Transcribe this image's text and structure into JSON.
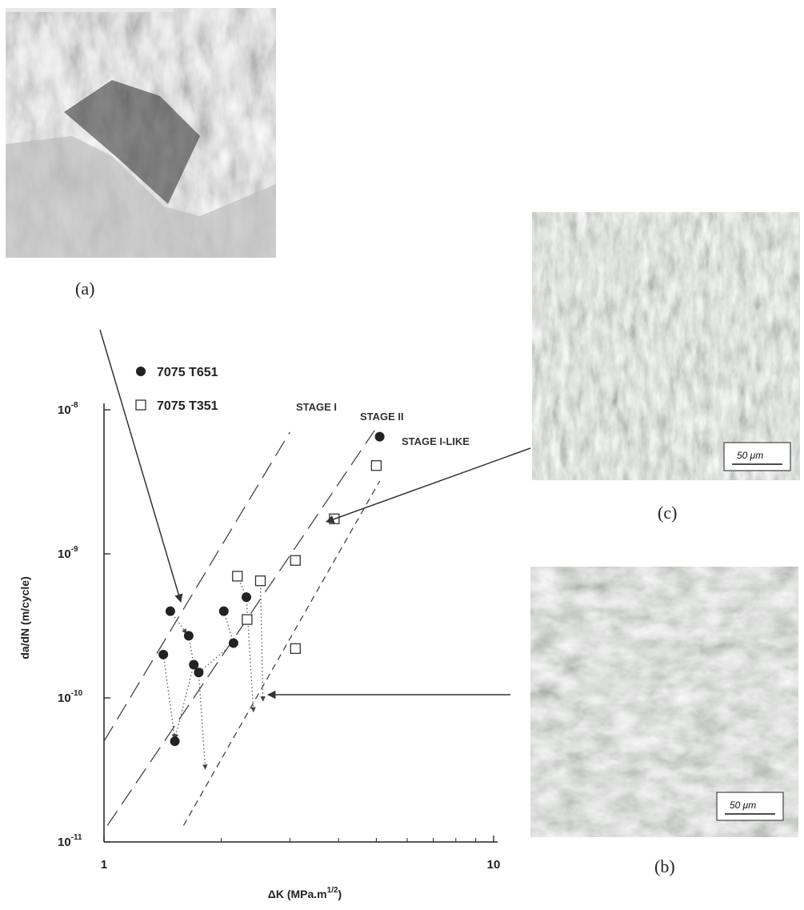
{
  "panels": {
    "a": {
      "caption": "(a)"
    },
    "c": {
      "caption": "(c)",
      "scale_bar": "50 μm"
    },
    "b": {
      "caption": "(b)",
      "scale_bar": "50 μm"
    }
  },
  "legend": {
    "items": [
      {
        "label": "7075 T651",
        "marker": "filled-circle"
      },
      {
        "label": "7075 T351",
        "marker": "open-square"
      }
    ]
  },
  "chart_data": {
    "type": "scatter",
    "xscale": "log",
    "yscale": "log",
    "xlim": [
      1,
      10
    ],
    "ylim": [
      1e-11,
      1e-08
    ],
    "xticks": [
      {
        "value": 1,
        "label": "1"
      },
      {
        "value": 10,
        "label": "10"
      }
    ],
    "yticks": [
      {
        "value": 1e-11,
        "base": "10",
        "exp": "-11"
      },
      {
        "value": 1e-10,
        "base": "10",
        "exp": "-10"
      },
      {
        "value": 1e-09,
        "base": "10",
        "exp": "-9"
      },
      {
        "value": 1e-08,
        "base": "10",
        "exp": "-8"
      }
    ],
    "xlabel": {
      "main": "ΔK (MPa.m",
      "exp": "1/2",
      "close": ")"
    },
    "ylabel": "da/dN (m/cycle)",
    "series": [
      {
        "name": "7075 T651",
        "marker": "filled-circle",
        "x": [
          1.48,
          1.42,
          1.65,
          1.7,
          1.75,
          1.52,
          2.03,
          2.15,
          2.32,
          5.1
        ],
        "y": [
          4e-10,
          2e-10,
          2.7e-10,
          1.7e-10,
          1.5e-10,
          5e-11,
          4e-10,
          2.4e-10,
          5e-10,
          6.5e-09
        ]
      },
      {
        "name": "7075 T351",
        "marker": "open-square",
        "x": [
          2.2,
          2.52,
          2.33,
          3.1,
          3.1,
          3.9,
          5.0
        ],
        "y": [
          7e-10,
          6.5e-10,
          3.5e-10,
          9e-10,
          2.2e-10,
          1.75e-09,
          4.1e-09
        ]
      }
    ],
    "lines": [
      {
        "label": "STAGE I",
        "style": "long-dash",
        "from": [
          1.0,
          5e-11
        ],
        "to": [
          3.0,
          7e-09
        ]
      },
      {
        "label": "STAGE II",
        "style": "long-dash",
        "from": [
          1.02,
          1.3e-11
        ],
        "to": [
          4.95,
          7.2e-09
        ]
      },
      {
        "label": "STAGE I-LIKE",
        "style": "short-dash",
        "from": [
          1.6,
          1.3e-11
        ],
        "to": [
          5.1,
          3.2e-09
        ]
      }
    ]
  }
}
